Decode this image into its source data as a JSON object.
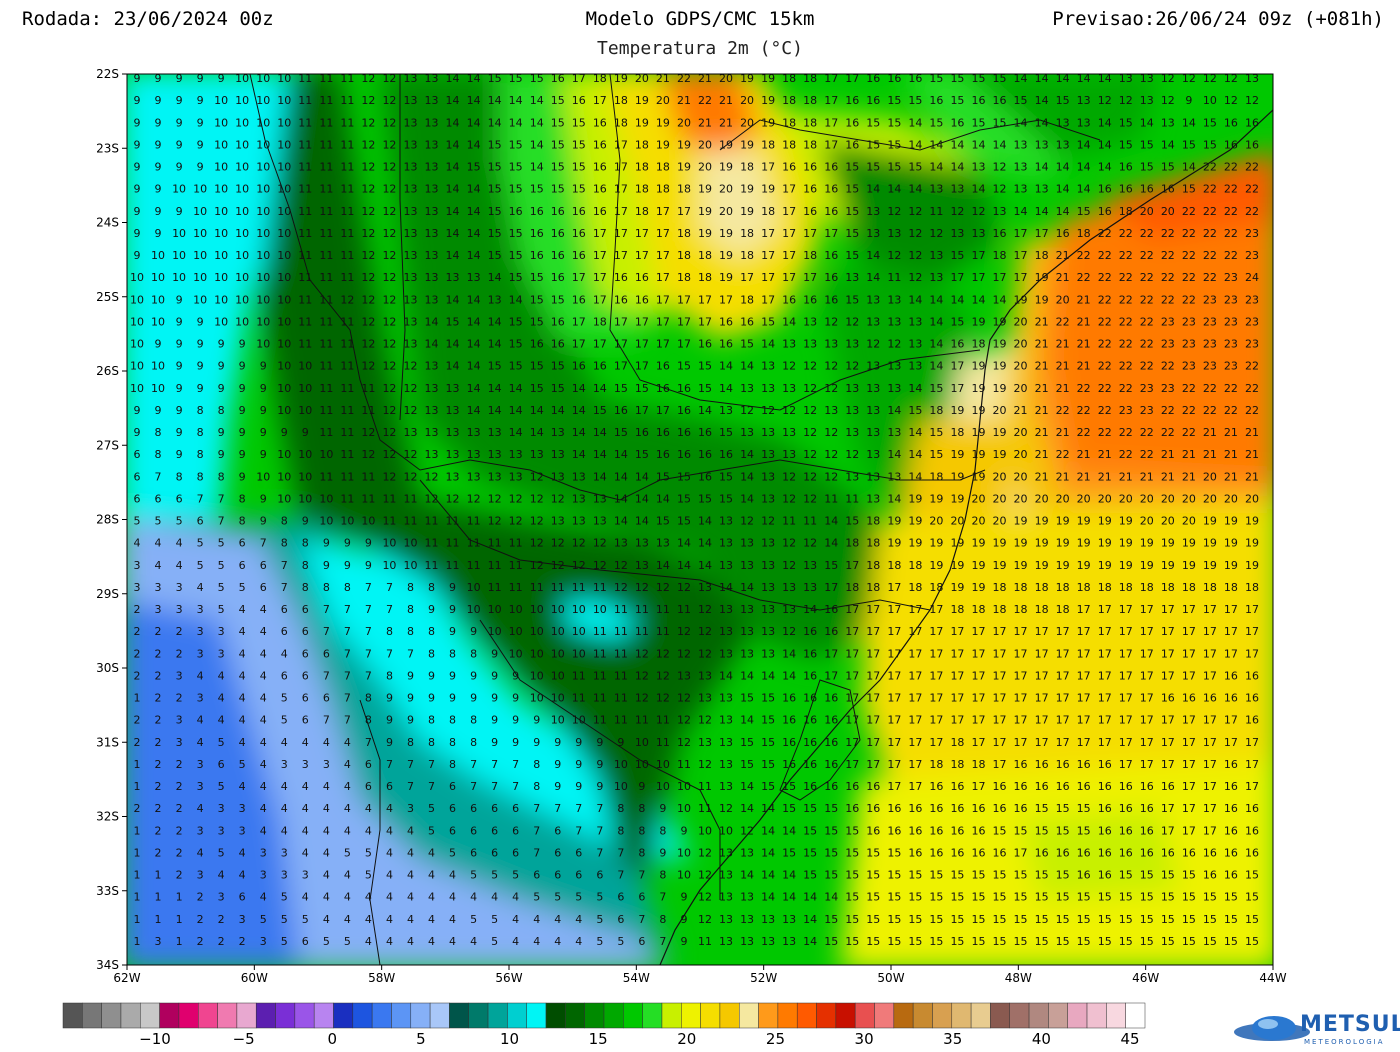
{
  "header": {
    "run": "Rodada: 23/06/2024 00z",
    "model": "Modelo GDPS/CMC 15km",
    "forecast": "Previsao:26/06/24 09z (+081h)",
    "variable": "Temperatura 2m (°C)"
  },
  "axes": {
    "lat_labels": [
      "22S",
      "23S",
      "24S",
      "25S",
      "26S",
      "27S",
      "28S",
      "29S",
      "30S",
      "31S",
      "32S",
      "33S",
      "34S"
    ],
    "lon_labels": [
      "62W",
      "60W",
      "58W",
      "56W",
      "54W",
      "52W",
      "50W",
      "48W",
      "46W",
      "44W"
    ]
  },
  "colorbar": {
    "labels": [
      "−10",
      "−5",
      "0",
      "5",
      "10",
      "15",
      "20",
      "25",
      "30",
      "35",
      "40",
      "45"
    ],
    "colors": [
      "#555555",
      "#777777",
      "#8f8f8f",
      "#aaaaaa",
      "#c8c8c8",
      "#b0005e",
      "#e0006e",
      "#f04590",
      "#f07ab0",
      "#e8a8d0",
      "#5c1fb0",
      "#7a2fd6",
      "#9a55e8",
      "#b884f0",
      "#1a2fc0",
      "#1d55e0",
      "#3a78f0",
      "#5c95f5",
      "#86b0f7",
      "#a9c7f8",
      "#00554a",
      "#007a6a",
      "#00a49a",
      "#00cfd0",
      "#00f5f5",
      "#004d00",
      "#006600",
      "#008a00",
      "#00a800",
      "#00c800",
      "#25de25",
      "#c8f000",
      "#eef200",
      "#f5de00",
      "#f5c800",
      "#f5e8a0",
      "#ff9a1a",
      "#ff7a00",
      "#ff5a00",
      "#e53000",
      "#c81000",
      "#e85050",
      "#f07a7a",
      "#b86a10",
      "#c88a30",
      "#d8a050",
      "#e0b870",
      "#e8cc90",
      "#8a5a50",
      "#a07068",
      "#b08880",
      "#c8a098",
      "#e8a8c0",
      "#f0c0d0",
      "#f8d8e0",
      "#ffffff"
    ]
  },
  "logo": {
    "name": "METSUL",
    "sub": "METEOROLOGIA"
  },
  "grid_values": [
    "9 9 9 9 9 10 10 10 11 11 11 12 12 13 13 14 14 15 15 15 16 17 18 19 20 21 22 21 20 19 19 18 18 17 17 16 16 16 15 15 15 15 14 14 14 14 14 13 13 12 12 12 12 13",
    "9 9 9 9 10 10 10 10 11 11 11 12 12 13 13 14 14 14 14 14 15 16 17 18 19 20 21 22 21 20 19 18 18 17 16 16 15 15 16 15 16 16 15 14 15 13 12 12 13 12 9 10 12 12",
    "9 9 9 9 10 10 10 10 11 11 11 12 12 13 13 14 14 14 14 14 15 15 16 18 19 19 20 21 21 20 19 18 18 17 16 15 15 14 15 16 15 15 14 14 13 13 14 15 14 13 14 15 16 16",
    "9 9 9 9 10 10 10 10 11 11 11 12 12 13 13 14 14 15 15 14 15 15 16 17 18 19 19 20 19 19 18 18 18 17 16 15 15 14 14 14 14 14 13 13 13 14 14 15 15 14 15 15 16 16",
    "9 9 9 9 10 10 10 10 11 11 11 12 12 13 13 14 15 15 15 14 15 15 16 17 18 18 19 20 19 18 17 16 16 16 15 15 15 15 14 14 13 12 13 14 14 14 14 16 15 15 14 22 22 22",
    "9 9 10 10 10 10 10 10 11 11 11 12 12 13 13 14 14 15 15 15 15 15 16 17 18 18 18 19 20 19 19 17 16 16 15 14 14 14 13 13 14 12 13 13 14 14 16 16 16 16 15 22 22 22",
    "9 9 9 10 10 10 10 10 11 11 11 12 12 13 13 14 14 15 16 16 16 16 16 17 18 17 17 19 20 19 18 17 16 16 15 13 12 12 11 12 12 13 14 14 14 15 16 18 20 20 22 22 22 22",
    "9 9 10 10 10 10 10 10 11 11 11 12 12 13 13 14 14 15 15 16 16 16 17 17 17 17 18 19 19 18 17 17 17 17 15 13 13 12 12 13 13 16 17 17 16 18 22 22 22 22 22 22 22 23",
    "9 10 10 10 10 10 10 10 11 11 11 12 12 13 13 14 14 15 15 16 16 16 17 17 17 17 18 18 19 18 17 17 18 16 15 14 12 12 13 15 17 18 17 18 21 22 22 22 22 22 22 22 22 23",
    "10 10 10 10 10 10 10 10 11 11 11 12 12 13 13 13 13 14 15 15 16 17 17 16 16 17 18 18 19 17 17 17 17 16 13 14 11 12 13 17 17 17 17 19 21 22 22 22 22 22 22 22 23 24",
    "10 10 9 10 10 10 10 10 11 11 12 12 12 13 13 14 14 13 14 15 15 16 17 16 16 17 17 17 17 18 17 16 16 16 15 13 13 14 14 14 14 14 19 19 20 21 22 22 22 22 22 23 23 23",
    "10 10 9 9 10 10 10 10 11 11 11 12 12 13 14 15 14 14 15 15 16 17 18 17 17 17 17 17 16 16 15 14 13 12 12 13 13 13 14 15 19 19 20 21 22 21 22 22 22 23 23 23 23 23",
    "10 9 9 9 9 9 10 10 11 11 11 12 12 13 14 14 14 14 15 16 16 17 17 17 17 17 17 16 16 15 14 13 13 13 13 12 12 13 14 16 18 19 20 21 21 21 22 22 22 23 23 23 23 23",
    "10 10 9 9 9 9 9 10 10 11 11 12 12 12 13 14 14 15 15 15 15 16 16 17 17 16 15 15 14 14 13 12 12 12 12 13 13 13 14 17 19 19 20 21 21 21 22 22 22 22 23 23 23 22",
    "10 10 9 9 9 9 9 10 10 11 11 11 12 12 13 13 14 14 14 15 15 14 14 15 15 16 16 15 14 13 13 13 12 12 13 13 13 14 15 17 19 19 20 21 21 22 22 22 23 23 22 22 22 22",
    "9 9 9 8 8 9 9 10 10 11 11 11 12 12 13 13 14 14 14 14 14 14 15 16 17 17 16 14 13 12 12 12 12 13 13 13 14 15 18 19 19 20 21 21 22 22 22 23 23 22 22 22 22 22",
    "9 8 9 8 9 9 9 9 9 11 11 12 12 13 13 13 13 13 14 14 13 14 14 15 16 16 16 16 15 13 13 13 12 12 13 13 13 14 15 18 19 19 20 21 21 22 22 22 22 22 22 21 21 21",
    "6 8 9 8 9 9 9 10 10 10 11 12 12 12 13 13 13 13 13 13 13 14 14 14 15 16 16 16 16 14 13 13 12 12 12 13 14 14 15 19 19 19 20 21 22 21 21 22 22 21 21 21 21 21",
    "6 7 8 8 8 9 10 10 10 11 11 11 12 12 12 13 13 13 13 12 13 13 14 14 14 15 15 16 15 14 13 12 12 12 13 13 13 14 18 19 19 20 20 21 21 21 21 21 21 21 21 20 21 21",
    "6 6 6 7 7 8 9 10 10 10 11 11 11 11 12 12 12 12 12 12 12 13 13 14 14 14 15 15 15 14 13 12 12 11 11 13 14 19 19 19 20 20 20 20 20 20 20 20 20 20 20 20 20 20",
    "5 5 5 6 7 8 9 8 9 10 10 10 11 11 11 11 11 12 12 12 13 13 13 14 14 15 15 14 13 12 12 11 11 14 15 18 19 19 20 20 20 20 19 19 19 19 19 19 20 20 20 19 19 19",
    "4 4 4 5 5 6 7 8 8 9 9 9 10 10 11 11 11 11 11 12 12 12 12 13 13 13 14 14 13 13 13 12 12 14 18 18 19 19 19 19 19 19 19 19 19 19 19 19 19 19 19 19 19 19",
    "3 4 4 5 5 6 6 7 8 9 9 9 10 10 11 11 11 11 11 12 12 12 12 12 13 14 14 14 13 13 13 12 13 15 17 18 18 18 19 19 19 19 19 19 19 19 19 19 19 19 19 19 19 19",
    "3 3 3 4 5 5 6 7 8 8 8 7 7 8 8 9 10 11 11 11 11 11 11 12 12 12 12 13 14 14 13 13 13 17 18 18 17 18 18 19 19 18 18 18 18 18 18 18 18 18 18 18 18 18",
    "2 3 3 3 5 4 4 6 6 7 7 7 7 8 9 9 10 10 10 10 10 10 10 11 11 11 11 12 13 13 13 13 14 16 17 17 17 17 17 18 18 18 18 18 18 17 17 17 17 17 17 17 17 17",
    "2 2 2 3 3 4 4 6 6 7 7 7 8 8 8 9 9 10 10 10 10 10 11 11 11 11 12 12 13 13 13 12 16 16 17 17 17 17 17 17 17 17 17 17 17 17 17 17 17 17 17 17 17 17",
    "2 2 2 3 3 4 4 4 6 6 7 7 7 7 8 8 8 9 10 10 10 10 11 11 12 12 12 12 13 13 13 14 16 17 17 17 17 17 17 17 17 17 17 17 17 17 17 17 17 17 17 17 17 17",
    "2 2 3 4 4 4 4 6 6 7 7 7 8 9 9 9 9 9 9 10 10 11 11 11 12 12 13 13 14 14 14 14 16 17 17 17 17 17 17 17 17 17 17 17 17 17 17 17 17 17 17 17 16 16",
    "1 2 2 3 4 4 4 5 6 6 7 8 9 9 9 9 9 9 9 10 10 11 11 11 12 12 12 13 13 15 15 16 16 16 17 17 17 17 17 17 17 17 17 17 17 17 17 17 17 16 16 16 16 16",
    "2 2 3 4 4 4 4 5 6 7 7 8 9 9 8 8 8 9 9 9 10 10 11 11 11 11 12 12 13 14 15 16 16 16 17 17 17 17 17 17 17 17 17 17 17 17 17 17 17 17 17 17 17 16",
    "2 2 3 4 5 4 4 4 4 4 4 7 9 8 8 8 8 9 9 9 9 9 9 9 10 11 12 13 13 15 15 16 16 16 17 17 17 17 17 18 17 17 17 17 17 17 17 17 17 17 17 17 17 17",
    "1 2 2 3 6 5 4 3 3 3 4 6 7 7 7 8 7 7 7 8 9 9 9 10 10 10 11 12 13 15 15 16 16 16 17 17 17 17 18 18 18 17 16 16 16 16 16 17 17 17 17 17 16 17",
    "1 2 2 3 5 4 4 4 4 4 4 6 6 7 7 6 7 7 7 8 9 9 9 10 9 10 10 11 13 14 15 15 16 16 16 16 17 17 16 16 17 16 16 16 16 16 16 16 16 16 17 17 16 17",
    "2 2 2 4 3 3 4 4 4 4 4 4 4 3 5 6 6 6 6 7 7 7 7 8 8 9 10 11 12 14 14 15 15 15 16 16 16 16 16 16 16 16 16 15 15 15 16 16 16 17 17 17 16 16",
    "1 2 2 3 3 3 4 4 4 4 4 4 4 4 5 6 6 6 6 7 6 7 7 8 8 8 9 10 10 12 14 14 15 15 15 16 16 16 16 16 16 15 15 15 15 15 16 16 16 17 17 17 16 16",
    "1 2 2 4 5 4 3 3 4 4 5 5 4 4 4 5 6 6 6 7 6 6 7 7 8 9 10 12 13 13 14 15 15 15 15 15 15 16 16 16 16 16 17 16 16 16 16 16 16 16 16 16 16 16",
    "1 1 2 3 4 4 3 3 3 4 4 5 4 4 4 4 5 5 5 6 6 6 6 7 7 8 10 12 13 14 14 14 15 15 15 15 15 15 15 15 15 15 15 15 15 16 16 15 15 15 15 16 16 15",
    "1 1 1 2 3 6 4 5 4 4 4 4 4 4 4 4 4 4 4 5 5 5 5 6 6 7 9 12 13 13 14 14 14 14 15 15 15 15 15 15 15 15 15 15 15 15 15 15 15 15 15 15 15 15",
    "1 1 1 2 2 3 5 5 5 4 4 4 4 4 4 4 5 5 4 4 4 4 5 6 7 8 9 12 13 13 13 13 14 15 15 15 15 15 15 15 15 15 15 15 15 15 15 15 15 15 15 15 15 15",
    "1 3 1 2 2 2 3 5 6 5 5 4 4 4 4 4 4 5 4 4 4 4 5 5 6 7 9 11 13 13 13 13 14 15 15 15 15 15 15 15 15 15 15 15 15 15 15 15 15 15 15 15 15 15"
  ]
}
